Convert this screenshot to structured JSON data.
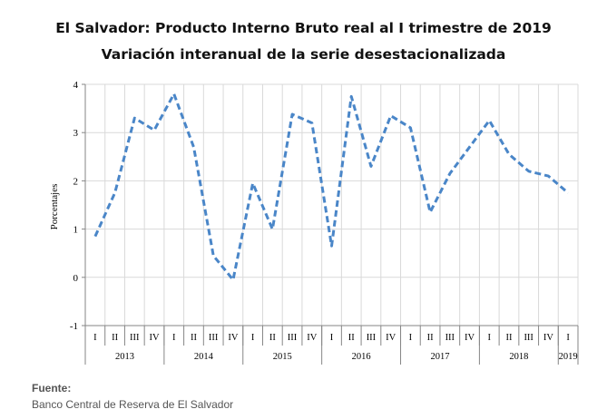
{
  "chart_data": {
    "type": "line",
    "title": "El Salvador: Producto Interno Bruto real al I trimestre de 2019",
    "subtitle": "Variación interanual de la serie desestacionalizada",
    "ylabel": "Porcentajes",
    "ylim": [
      -1,
      4
    ],
    "yticks": [
      -1,
      0,
      1,
      2,
      3,
      4
    ],
    "grid": true,
    "x": [
      "I",
      "II",
      "III",
      "IV",
      "I",
      "II",
      "III",
      "IV",
      "I",
      "II",
      "III",
      "IV",
      "I",
      "II",
      "III",
      "IV",
      "I",
      "II",
      "III",
      "IV",
      "I",
      "II",
      "III",
      "IV",
      "I"
    ],
    "years": [
      {
        "label": "2013",
        "quarters": 4
      },
      {
        "label": "2014",
        "quarters": 4
      },
      {
        "label": "2015",
        "quarters": 4
      },
      {
        "label": "2016",
        "quarters": 4
      },
      {
        "label": "2017",
        "quarters": 4
      },
      {
        "label": "2018",
        "quarters": 4
      },
      {
        "label": "2019",
        "quarters": 1
      }
    ],
    "series": [
      {
        "values": [
          0.85,
          1.75,
          3.3,
          3.05,
          3.8,
          2.7,
          0.45,
          -0.05,
          1.95,
          1.0,
          3.38,
          3.2,
          0.65,
          3.75,
          2.3,
          3.35,
          3.1,
          1.35,
          2.15,
          2.7,
          3.25,
          2.55,
          2.2,
          2.1,
          1.75
        ],
        "color": "#4A86C8",
        "style": "dashed"
      }
    ]
  },
  "source": {
    "label": "Fuente:",
    "text": "Banco Central de Reserva de El Salvador"
  }
}
